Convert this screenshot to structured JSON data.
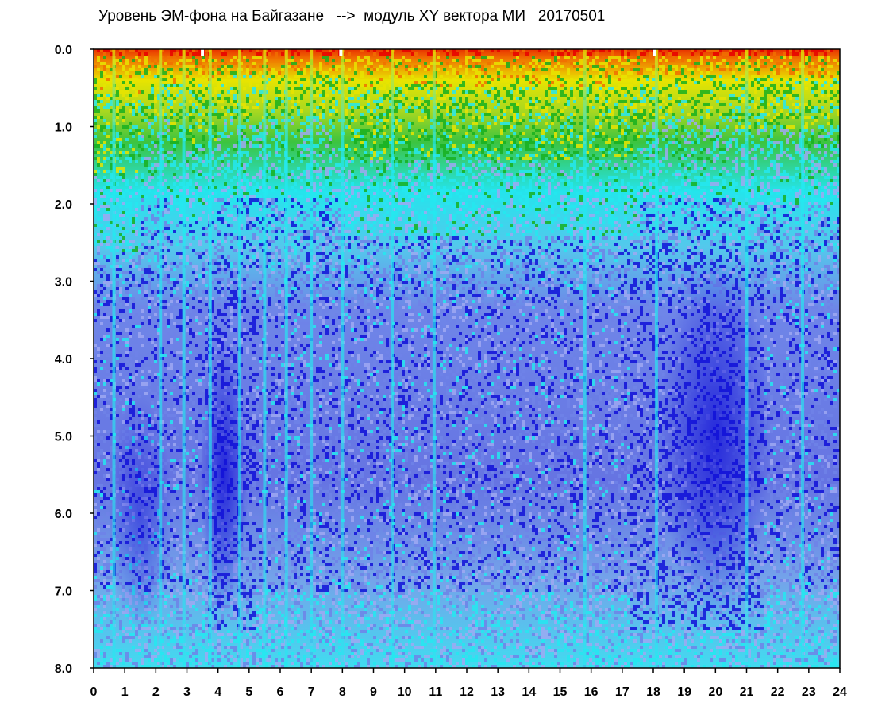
{
  "chart_data": {
    "type": "heatmap",
    "title": "Уровень ЭМ-фона на Байгазане   -->  модуль XY вектора МИ   20170501",
    "xlabel": "",
    "ylabel": "",
    "x_ticks": [
      "0",
      "1",
      "2",
      "3",
      "4",
      "5",
      "6",
      "7",
      "8",
      "9",
      "10",
      "11",
      "12",
      "13",
      "14",
      "15",
      "16",
      "17",
      "18",
      "19",
      "20",
      "21",
      "22",
      "23",
      "24"
    ],
    "y_ticks": [
      "0.0",
      "1.0",
      "2.0",
      "3.0",
      "4.0",
      "5.0",
      "6.0",
      "7.0",
      "8.0"
    ],
    "xlim": [
      0,
      24
    ],
    "ylim": [
      0.0,
      8.0
    ],
    "y_inverted": true,
    "grid": false,
    "colormap": [
      "#1010d8",
      "#6f82e8",
      "#9fa8f2",
      "#24e8f0",
      "#18b020",
      "#e8e400",
      "#f07000",
      "#e80000"
    ],
    "colors": {
      "frame": "#000000",
      "background": "#ffffff"
    }
  }
}
